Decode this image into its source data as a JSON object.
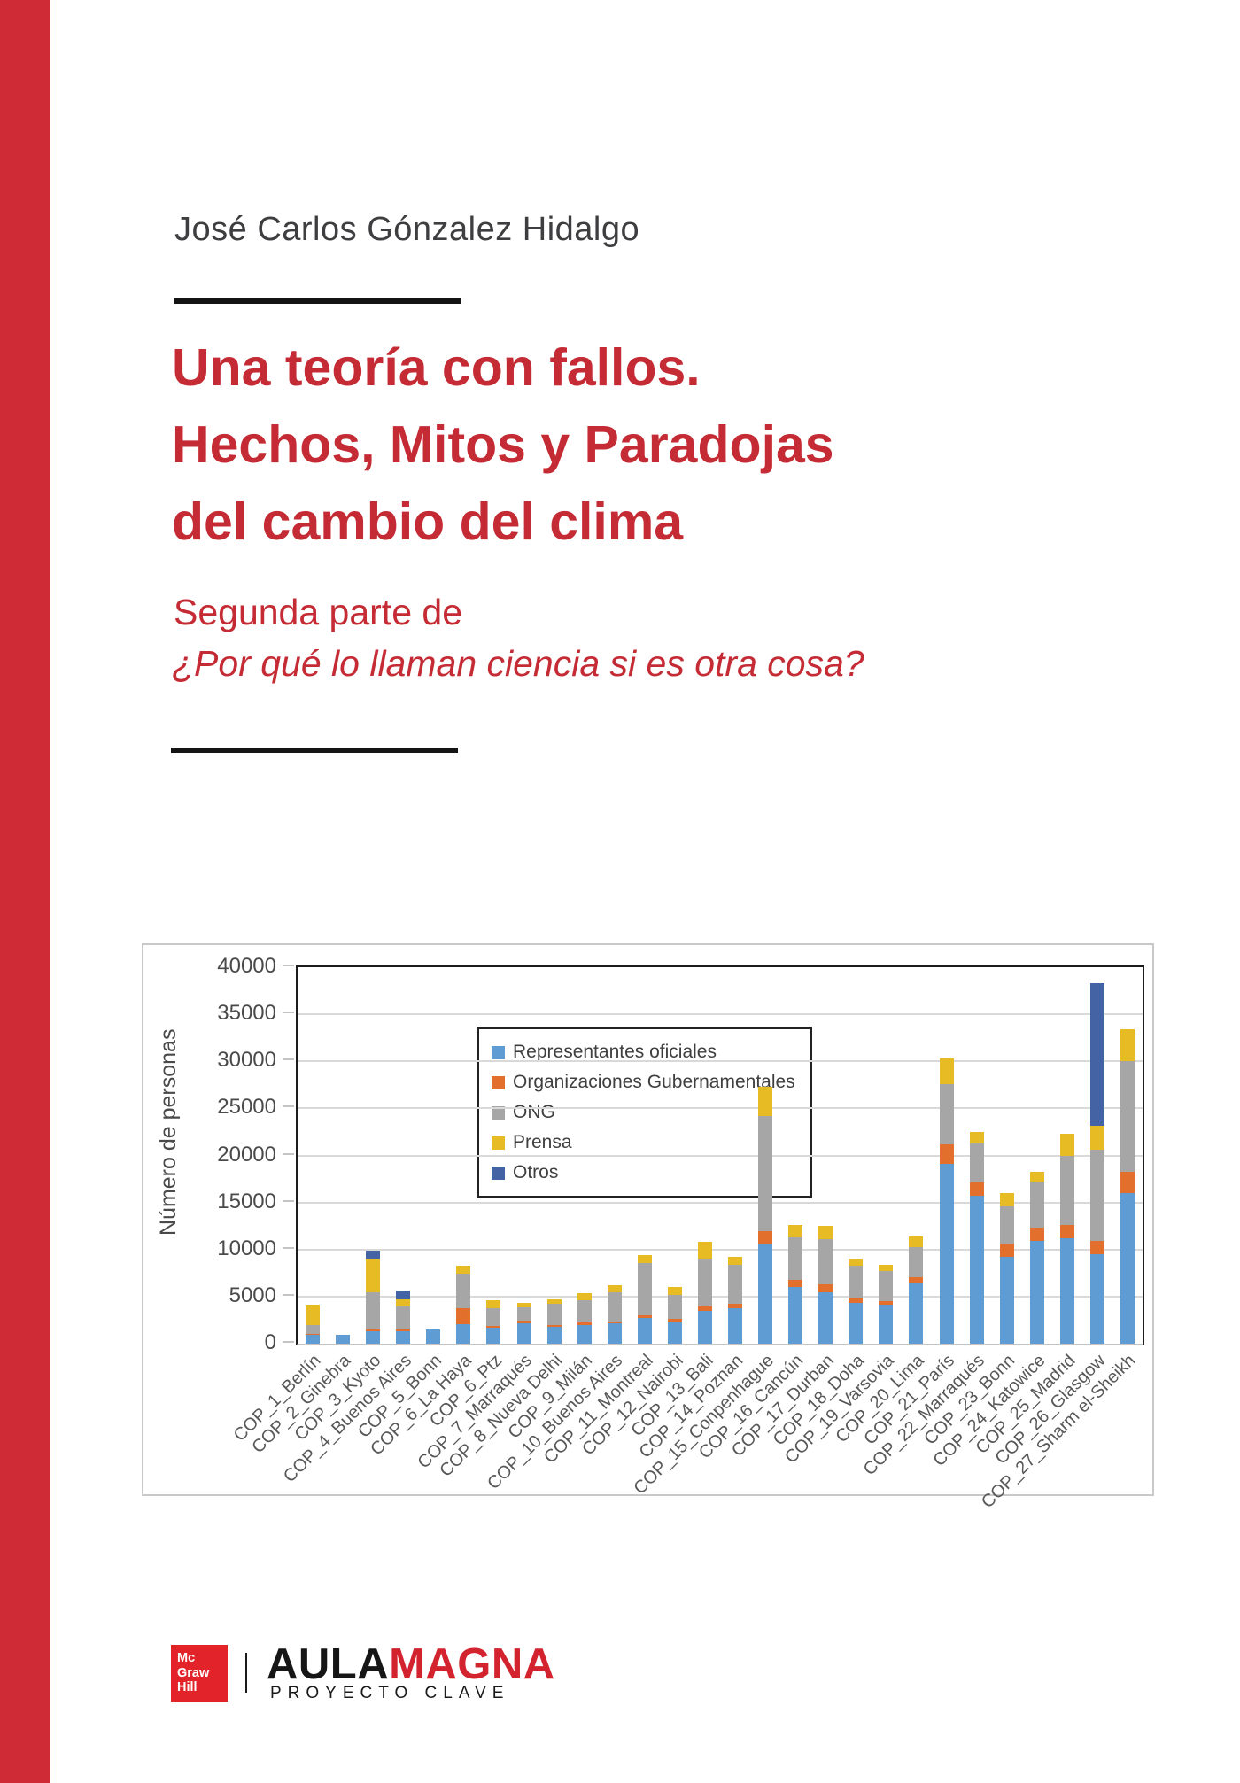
{
  "cover": {
    "author": "José Carlos Gónzalez Hidalgo",
    "title_lines": [
      "Una teoría con fallos.",
      "Hechos, Mitos y Paradojas",
      "del cambio del clima"
    ],
    "subtitle": "Segunda parte de",
    "subtitle_italic": "¿Por qué lo llaman ciencia si es otra cosa?",
    "title_red": "#C52B34",
    "stripe_red": "#CE2B36"
  },
  "publisher": {
    "mcgraw_lines": [
      "Mc",
      "Graw",
      "Hill"
    ],
    "mcgraw_red": "#E2232A",
    "brand_black": "AULA",
    "brand_red_text": "MAGNA",
    "brand_red": "#D2232E",
    "tagline": "PROYECTO CLAVE"
  },
  "chart_data": {
    "type": "bar",
    "stacked": true,
    "title": "",
    "xlabel": "",
    "ylabel": "Número de personas",
    "ylim": [
      0,
      40000
    ],
    "ytick_step": 5000,
    "grid": true,
    "legend_position": "upper-left-inside",
    "categories": [
      "COP_1_Berlín",
      "COP_2_Ginebra",
      "COP_3_Kyoto",
      "COP_4_Buenos Aires",
      "COP_5_Bonn",
      "COP_6_La Haya",
      "COP_6_Ptz",
      "COP_7_Marraqués",
      "COP_8_Nueva Delhi",
      "COP_9_Milán",
      "COP_10_Buenos Aires",
      "COP_11_Montreal",
      "COP_12_Nairobi",
      "COP_13_Bali",
      "COP_14_Poznan",
      "COP_15_Conpenhague",
      "COP_16_Cancún",
      "COP_17_Durban",
      "COP_18_Doha",
      "COP_19_Varsovia",
      "COP_20_Lima",
      "COP_21_París",
      "COP_22_Marraqués",
      "COP_23_Bonn",
      "COP_24_Katowice",
      "COP_25_Madrid",
      "COP_26_Glasgow",
      "COP_27_Sharm el-Sheikh"
    ],
    "series": [
      {
        "name": "Representantes oficiales",
        "color": "#5E9CD3",
        "values": [
          900,
          900,
          1300,
          1350,
          1500,
          2050,
          1700,
          2200,
          1800,
          2000,
          2150,
          2700,
          2300,
          3450,
          3750,
          10600,
          6000,
          5450,
          4350,
          4100,
          6500,
          19100,
          15700,
          9200,
          10900,
          11200,
          9500,
          16000
        ]
      },
      {
        "name": "Organizaciones Gubernamentales",
        "color": "#E2702C",
        "values": [
          150,
          0,
          200,
          150,
          0,
          1700,
          200,
          250,
          200,
          250,
          200,
          300,
          300,
          550,
          500,
          1400,
          800,
          900,
          450,
          400,
          600,
          2100,
          1400,
          1400,
          1400,
          1400,
          1400,
          2300
        ]
      },
      {
        "name": "ONG",
        "color": "#A6A6A6",
        "values": [
          950,
          0,
          3950,
          2500,
          0,
          3650,
          1850,
          1400,
          2200,
          2400,
          3100,
          5550,
          2600,
          5050,
          4100,
          12200,
          4450,
          4750,
          3500,
          3250,
          3200,
          6350,
          4150,
          4000,
          4900,
          7400,
          9700,
          11700
        ]
      },
      {
        "name": "Prensa",
        "color": "#E7BB23",
        "values": [
          2100,
          0,
          3550,
          750,
          0,
          900,
          850,
          500,
          550,
          750,
          750,
          850,
          800,
          1750,
          900,
          3100,
          1400,
          1400,
          700,
          600,
          1100,
          2800,
          1250,
          1400,
          1100,
          2300,
          2600,
          3400
        ]
      },
      {
        "name": "Otros",
        "color": "#4463A5",
        "values": [
          0,
          0,
          900,
          900,
          0,
          0,
          0,
          0,
          0,
          0,
          0,
          0,
          0,
          0,
          0,
          0,
          0,
          0,
          0,
          0,
          0,
          0,
          0,
          0,
          0,
          0,
          15100,
          0
        ]
      }
    ]
  }
}
